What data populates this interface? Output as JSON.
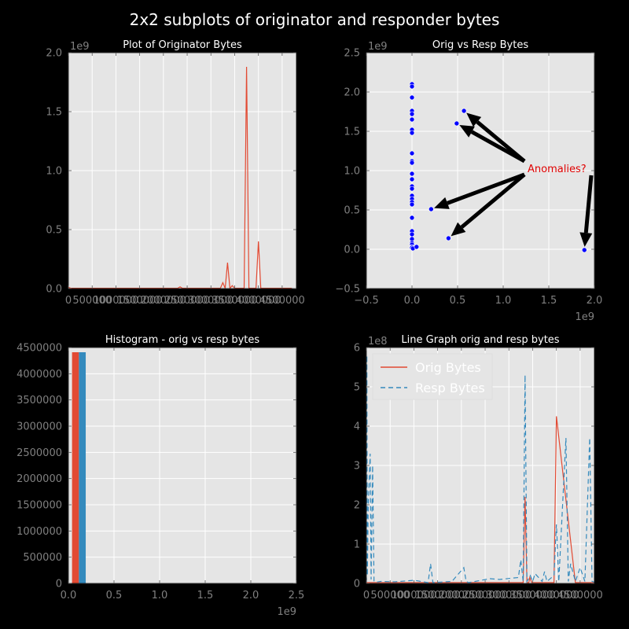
{
  "figure": {
    "title": "2x2 subplots of originator and responder bytes"
  },
  "colors": {
    "background": "#000000",
    "axes_bg": "#e5e5e5",
    "grid": "#ffffff",
    "orig": "#e24a33",
    "resp": "#348abd",
    "scatter": "#0000ff",
    "annotation": "#e00000",
    "tick": "#808080"
  },
  "chart_data": [
    {
      "id": "p1",
      "type": "line",
      "title": "Plot of Originator Bytes",
      "xlabel": "",
      "ylabel": "",
      "grid": true,
      "xlim": [
        0,
        4800000
      ],
      "ylim": [
        0,
        2000000000.0
      ],
      "x_offset_text": "",
      "y_offset_text": "1e9",
      "xticks": [
        0,
        500000,
        1000000,
        1500000,
        2000000,
        2500000,
        3000000,
        3500000,
        4000000,
        4500000
      ],
      "xticklabels": [
        "0",
        "500000",
        "1000000",
        "1500000",
        "2000000",
        "2500000",
        "3000000",
        "3500000",
        "4000000",
        "4500000"
      ],
      "yticks": [
        0,
        500000000.0,
        1000000000.0,
        1500000000.0,
        2000000000.0
      ],
      "yticklabels": [
        "0.0",
        "0.5",
        "1.0",
        "1.5",
        "2.0"
      ],
      "series": [
        {
          "color": "#e24a33",
          "x": [
            0,
            50000,
            2300000,
            2350000,
            2400000,
            3200000,
            3250000,
            3300000,
            3350000,
            3400000,
            3450000,
            3500000,
            3550000,
            3600000,
            3700000,
            3750000,
            3800000,
            3950000,
            4000000,
            4050000,
            4200000,
            4400000,
            4700000
          ],
          "y": [
            10000000.0,
            3000000.0,
            3000000.0,
            15000000.0,
            3000000.0,
            3000000.0,
            50000000.0,
            3000000.0,
            220000000.0,
            3000000.0,
            25000000.0,
            3000000.0,
            3000000.0,
            3000000.0,
            3000000.0,
            1880000000.0,
            3000000.0,
            3000000.0,
            400000000.0,
            3000000.0,
            3000000.0,
            3000000.0,
            3000000.0
          ]
        }
      ]
    },
    {
      "id": "p2",
      "type": "scatter",
      "title": "Orig vs Resp Bytes",
      "xlabel": "",
      "ylabel": "",
      "grid": true,
      "xlim": [
        -500000000.0,
        2000000000.0
      ],
      "ylim": [
        -500000000.0,
        2500000000.0
      ],
      "x_offset_text": "1e9",
      "y_offset_text": "1e9",
      "xticks": [
        -500000000.0,
        0,
        500000000.0,
        1000000000.0,
        1500000000.0,
        2000000000.0
      ],
      "xticklabels": [
        "−0.5",
        "0.0",
        "0.5",
        "1.0",
        "1.5",
        "2.0"
      ],
      "yticks": [
        -500000000.0,
        0,
        500000000.0,
        1000000000.0,
        1500000000.0,
        2000000000.0,
        2500000000.0
      ],
      "yticklabels": [
        "−0.5",
        "0.0",
        "0.5",
        "1.0",
        "1.5",
        "2.0",
        "2.5"
      ],
      "points": [
        [
          0,
          2100000000.0
        ],
        [
          0,
          2070000000.0
        ],
        [
          0,
          1930000000.0
        ],
        [
          0,
          1760000000.0
        ],
        [
          0,
          1720000000.0
        ],
        [
          0,
          1650000000.0
        ],
        [
          0,
          1520000000.0
        ],
        [
          0,
          1480000000.0
        ],
        [
          0,
          1220000000.0
        ],
        [
          0,
          1120000000.0
        ],
        [
          0,
          1100000000.0
        ],
        [
          0,
          960000000.0
        ],
        [
          0,
          890000000.0
        ],
        [
          0,
          800000000.0
        ],
        [
          0,
          770000000.0
        ],
        [
          0,
          680000000.0
        ],
        [
          0,
          640000000.0
        ],
        [
          0,
          600000000.0
        ],
        [
          0,
          570000000.0
        ],
        [
          0,
          400000000.0
        ],
        [
          0,
          230000000.0
        ],
        [
          0,
          190000000.0
        ],
        [
          0,
          130000000.0
        ],
        [
          0,
          80000000.0
        ],
        [
          0,
          60000000.0
        ],
        [
          0,
          30000000.0
        ],
        [
          0,
          20000000.0
        ],
        [
          10000000.0,
          10000000.0
        ],
        [
          50000000.0,
          30000000.0
        ],
        [
          570000000.0,
          1760000000.0
        ],
        [
          490000000.0,
          1600000000.0
        ],
        [
          210000000.0,
          510000000.0
        ],
        [
          400000000.0,
          140000000.0
        ],
        [
          1890000000.0,
          -10000000.0
        ]
      ],
      "annotation": {
        "text": "Anomalies?",
        "anchor": [
          1250000000.0,
          1030000000.0
        ],
        "arrow_targets": [
          [
            570000000.0,
            1760000000.0
          ],
          [
            490000000.0,
            1600000000.0
          ],
          [
            210000000.0,
            510000000.0
          ],
          [
            400000000.0,
            140000000.0
          ],
          [
            1890000000.0,
            -10000000.0
          ]
        ]
      }
    },
    {
      "id": "p3",
      "type": "bar",
      "title": "Histogram - orig vs resp bytes",
      "xlabel": "",
      "ylabel": "",
      "grid": true,
      "xlim": [
        0,
        2500000000.0
      ],
      "ylim": [
        0,
        4500000
      ],
      "x_offset_text": "1e9",
      "y_offset_text": "",
      "xticks": [
        0,
        500000000.0,
        1000000000.0,
        1500000000.0,
        2000000000.0,
        2500000000.0
      ],
      "xticklabels": [
        "0.0",
        "0.5",
        "1.0",
        "1.5",
        "2.0",
        "2.5"
      ],
      "yticks": [
        0,
        500000,
        1000000,
        1500000,
        2000000,
        2500000,
        3000000,
        3500000,
        4000000,
        4500000
      ],
      "yticklabels": [
        "0",
        "500000",
        "1000000",
        "1500000",
        "2000000",
        "2500000",
        "3000000",
        "3500000",
        "4000000",
        "4500000"
      ],
      "bars": [
        {
          "series": "orig",
          "x0": 40000000.0,
          "x1": 115000000.0,
          "value": 4410000,
          "color": "#e24a33"
        },
        {
          "series": "resp",
          "x0": 115000000.0,
          "x1": 190000000.0,
          "value": 4410000,
          "color": "#348abd"
        }
      ]
    },
    {
      "id": "p4",
      "type": "line",
      "title": "Line Graph orig and resp bytes",
      "xlabel": "",
      "ylabel": "",
      "grid": true,
      "xlim": [
        0,
        4800000
      ],
      "ylim": [
        0,
        600000000.0
      ],
      "x_offset_text": "",
      "y_offset_text": "1e8",
      "xticks": [
        0,
        500000,
        1000000,
        1500000,
        2000000,
        2500000,
        3000000,
        3500000,
        4000000,
        4500000
      ],
      "xticklabels": [
        "0",
        "500000",
        "1000000",
        "1500000",
        "2000000",
        "2500000",
        "3000000",
        "3500000",
        "4000000",
        "4500000"
      ],
      "yticks": [
        0,
        100000000.0,
        200000000.0,
        300000000.0,
        400000000.0,
        500000000.0,
        600000000.0
      ],
      "yticklabels": [
        "0",
        "1",
        "2",
        "3",
        "4",
        "5",
        "6"
      ],
      "legend": {
        "position": "upper-left",
        "entries": [
          "Orig Bytes",
          "Resp Bytes"
        ]
      },
      "series": [
        {
          "name": "Orig Bytes",
          "color": "#e24a33",
          "style": "solid",
          "x": [
            0,
            3300000,
            3340000,
            3380000,
            3420000,
            3440000,
            3480000,
            3520000,
            3560000,
            3600000,
            3900000,
            3950000,
            4000000,
            4400000,
            4800000
          ],
          "y": [
            2000000.0,
            2000000.0,
            220000000.0,
            2000000.0,
            2000000.0,
            15000000.0,
            2000000.0,
            2000000.0,
            2000000.0,
            2000000.0,
            2000000.0,
            2000000.0,
            425000000.0,
            2000000.0,
            2000000.0
          ]
        },
        {
          "name": "Resp Bytes",
          "color": "#348abd",
          "style": "dashed",
          "x": [
            0,
            10000,
            20000,
            40000,
            80000,
            100000,
            130000,
            160000,
            200000,
            300000,
            600000,
            1000000,
            1300000,
            1350000,
            1400000,
            1800000,
            2050000,
            2100000,
            2150000,
            2600000,
            2800000,
            3200000,
            3250000,
            3300000,
            3340000,
            3380000,
            3450000,
            3500000,
            3550000,
            3700000,
            3750000,
            3800000,
            3950000,
            4000000,
            4050000,
            4200000,
            4250000,
            4300000,
            4400000,
            4500000,
            4600000,
            4700000,
            4750000,
            4800000
          ],
          "y": [
            3000000.0,
            580000000.0,
            20000000.0,
            200000000.0,
            330000000.0,
            10000000.0,
            300000000.0,
            5000000.0,
            3000000.0,
            5000000.0,
            4000000.0,
            8000000.0,
            2000000.0,
            50000000.0,
            2000000.0,
            5000000.0,
            40000000.0,
            5000000.0,
            2000000.0,
            12000000.0,
            10000000.0,
            15000000.0,
            60000000.0,
            5000000.0,
            530000000.0,
            5000000.0,
            20000000.0,
            5000000.0,
            25000000.0,
            5000000.0,
            30000000.0,
            5000000.0,
            20000000.0,
            150000000.0,
            5000000.0,
            370000000.0,
            5000000.0,
            50000000.0,
            5000000.0,
            40000000.0,
            5000000.0,
            370000000.0,
            5000000.0,
            3000000.0
          ]
        }
      ]
    }
  ]
}
